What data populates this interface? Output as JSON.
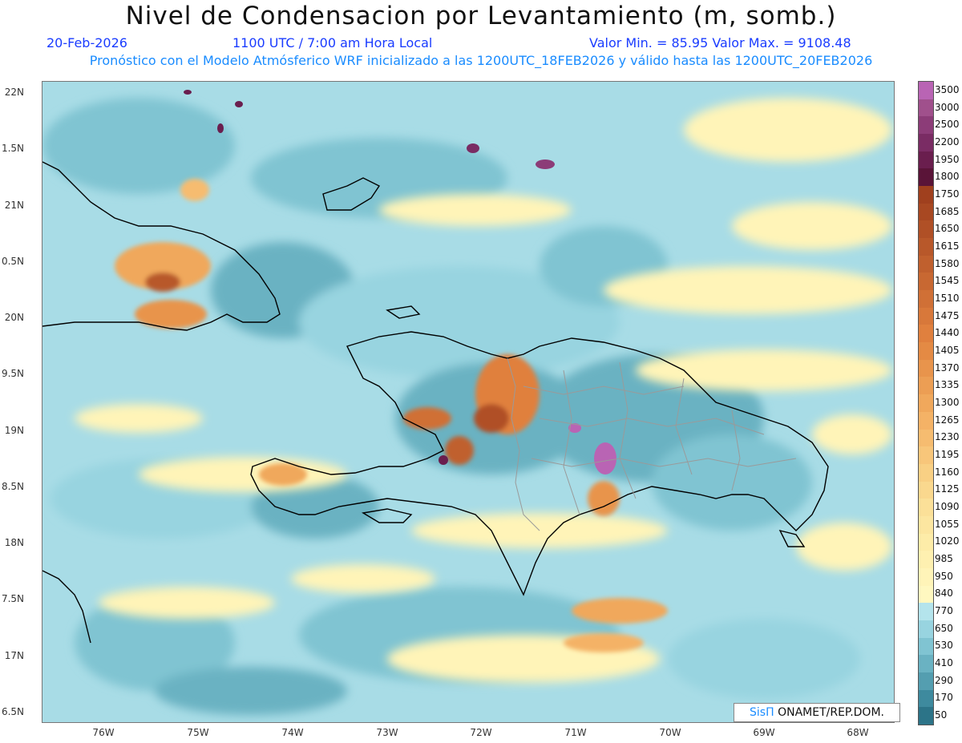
{
  "header": {
    "title": "Nivel de Condensacion por Levantamiento (m, somb.)",
    "date": "20-Feb-2026",
    "time": "1100 UTC / 7:00 am Hora Local",
    "min_max": "Valor Min. = 85.95  Valor Max. = 9108.48",
    "model_info": "Pronóstico con el Modelo Atmósferico WRF inicializado a las 1200UTC_18FEB2026 y válido hasta las  1200UTC_20FEB2026"
  },
  "axes": {
    "lat_labels": [
      "22N",
      "1.5N",
      "21N",
      "0.5N",
      "20N",
      "9.5N",
      "19N",
      "8.5N",
      "18N",
      "7.5N",
      "17N",
      "6.5N"
    ],
    "lon_labels": [
      "76W",
      "75W",
      "74W",
      "73W",
      "72W",
      "71W",
      "70W",
      "69W",
      "68W"
    ]
  },
  "legend": {
    "labels": [
      "3500",
      "3000",
      "2500",
      "2200",
      "1950",
      "1800",
      "1750",
      "1685",
      "1650",
      "1615",
      "1580",
      "1545",
      "1510",
      "1475",
      "1440",
      "1405",
      "1370",
      "1335",
      "1300",
      "1265",
      "1230",
      "1195",
      "1160",
      "1125",
      "1090",
      "1055",
      "1020",
      "985",
      "950",
      "840",
      "770",
      "650",
      "530",
      "410",
      "290",
      "170",
      "50"
    ],
    "colors": [
      "#b964b4",
      "#a0508c",
      "#8c3c78",
      "#7a2c64",
      "#6a1e4e",
      "#5a1438",
      "#a0401e",
      "#a84822",
      "#b05026",
      "#b8582a",
      "#c0602e",
      "#c86832",
      "#d07036",
      "#d8783a",
      "#e0803e",
      "#e48a44",
      "#e8944c",
      "#ec9e54",
      "#f0a85c",
      "#f4b266",
      "#f6bc70",
      "#f8c67a",
      "#f9d084",
      "#fad88e",
      "#fbe098",
      "#fce6a0",
      "#fdeca8",
      "#fef0b0",
      "#fff4b8",
      "#fff8c0",
      "#b4e4ec",
      "#98d4e0",
      "#80c4d2",
      "#6ab2c2",
      "#549eb0",
      "#3e8a9e",
      "#2c7488"
    ]
  },
  "credit": {
    "sis": "SisΠ",
    "text": " ONAMET/REP.DOM."
  }
}
